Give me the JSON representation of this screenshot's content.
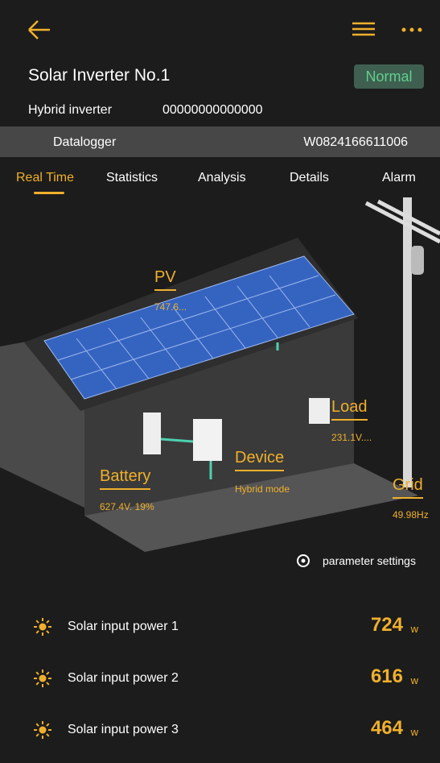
{
  "header": {
    "title": "Solar Inverter No.1",
    "status": "Normal"
  },
  "device": {
    "type_label": "Hybrid inverter",
    "serial": "00000000000000"
  },
  "datalogger": {
    "label": "Datalogger",
    "serial": "W0824166611006"
  },
  "tabs": [
    "Real Time",
    "Statistics",
    "Analysis",
    "Details",
    "Alarm"
  ],
  "diagram": {
    "pv": {
      "label": "PV",
      "value": "747.6..."
    },
    "load": {
      "label": "Load",
      "value": "231.1V...."
    },
    "device": {
      "label": "Device",
      "value": "Hybrid mode"
    },
    "battery": {
      "label": "Battery",
      "value": "627.4V. 19%"
    },
    "grid": {
      "label": "Grid",
      "value": "49.98Hz"
    }
  },
  "settings_link": "parameter settings",
  "rows": [
    {
      "label": "Solar input power 1",
      "value": 724,
      "unit": "w"
    },
    {
      "label": "Solar input power 2",
      "value": 616,
      "unit": "w"
    },
    {
      "label": "Solar input power 3",
      "value": 464,
      "unit": "w"
    }
  ]
}
